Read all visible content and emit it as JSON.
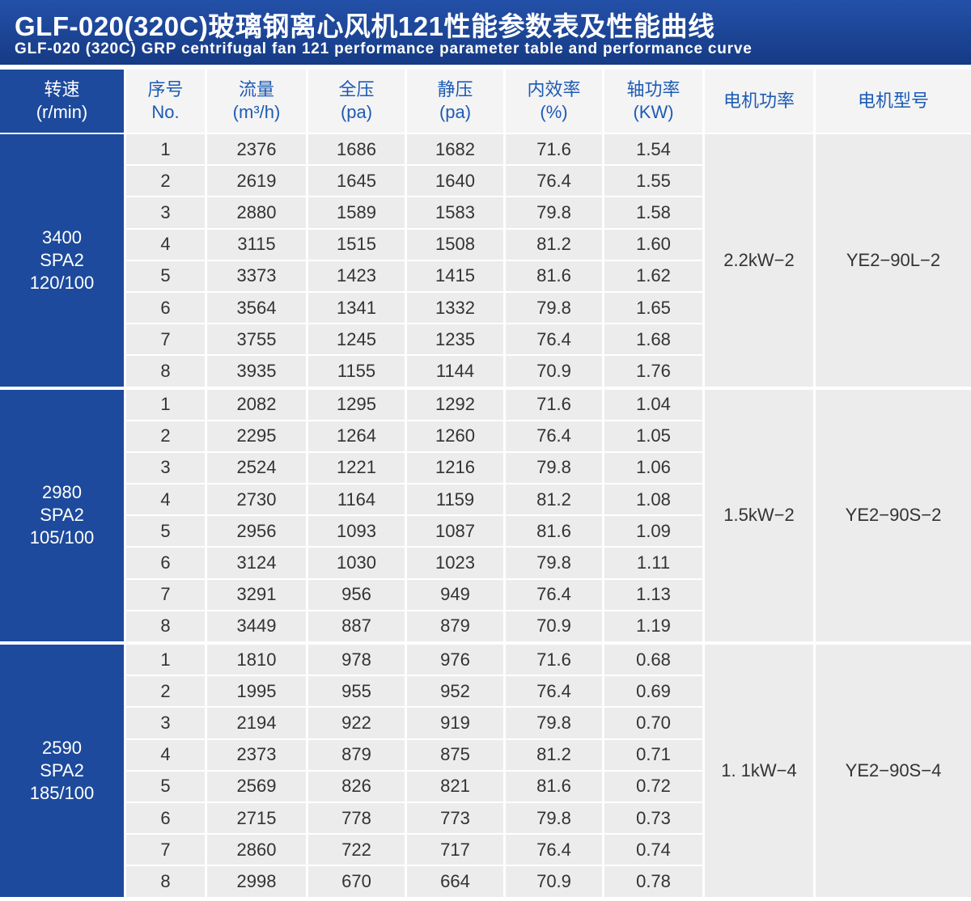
{
  "header": {
    "title_cn": "GLF-020(320C)玻璃钢离心风机121性能参数表及性能曲线",
    "title_en": "GLF-020 (320C) GRP centrifugal fan 121 performance parameter table and performance curve"
  },
  "table": {
    "columns": [
      [
        "转速",
        "(r/min)"
      ],
      [
        "序号",
        "No."
      ],
      [
        "流量",
        "(m³/h)"
      ],
      [
        "全压",
        "(pa)"
      ],
      [
        "静压",
        "(pa)"
      ],
      [
        "内效率",
        "(%)"
      ],
      [
        "轴功率",
        "(KW)"
      ],
      [
        "电机功率"
      ],
      [
        "电机型号"
      ]
    ],
    "groups": [
      {
        "speed": [
          "3400",
          "SPA2",
          "120/100"
        ],
        "power": "2.2kW−2",
        "motor": "YE2−90L−2",
        "rows": [
          [
            "1",
            "2376",
            "1686",
            "1682",
            "71.6",
            "1.54"
          ],
          [
            "2",
            "2619",
            "1645",
            "1640",
            "76.4",
            "1.55"
          ],
          [
            "3",
            "2880",
            "1589",
            "1583",
            "79.8",
            "1.58"
          ],
          [
            "4",
            "3115",
            "1515",
            "1508",
            "81.2",
            "1.60"
          ],
          [
            "5",
            "3373",
            "1423",
            "1415",
            "81.6",
            "1.62"
          ],
          [
            "6",
            "3564",
            "1341",
            "1332",
            "79.8",
            "1.65"
          ],
          [
            "7",
            "3755",
            "1245",
            "1235",
            "76.4",
            "1.68"
          ],
          [
            "8",
            "3935",
            "1155",
            "1144",
            "70.9",
            "1.76"
          ]
        ]
      },
      {
        "speed": [
          "2980",
          "SPA2",
          "105/100"
        ],
        "power": "1.5kW−2",
        "motor": "YE2−90S−2",
        "rows": [
          [
            "1",
            "2082",
            "1295",
            "1292",
            "71.6",
            "1.04"
          ],
          [
            "2",
            "2295",
            "1264",
            "1260",
            "76.4",
            "1.05"
          ],
          [
            "3",
            "2524",
            "1221",
            "1216",
            "79.8",
            "1.06"
          ],
          [
            "4",
            "2730",
            "1164",
            "1159",
            "81.2",
            "1.08"
          ],
          [
            "5",
            "2956",
            "1093",
            "1087",
            "81.6",
            "1.09"
          ],
          [
            "6",
            "3124",
            "1030",
            "1023",
            "79.8",
            "1.11"
          ],
          [
            "7",
            "3291",
            "956",
            "949",
            "76.4",
            "1.13"
          ],
          [
            "8",
            "3449",
            "887",
            "879",
            "70.9",
            "1.19"
          ]
        ]
      },
      {
        "speed": [
          "2590",
          "SPA2",
          "185/100"
        ],
        "power": "1. 1kW−4",
        "motor": "YE2−90S−4",
        "rows": [
          [
            "1",
            "1810",
            "978",
            "976",
            "71.6",
            "0.68"
          ],
          [
            "2",
            "1995",
            "955",
            "952",
            "76.4",
            "0.69"
          ],
          [
            "3",
            "2194",
            "922",
            "919",
            "79.8",
            "0.70"
          ],
          [
            "4",
            "2373",
            "879",
            "875",
            "81.2",
            "0.71"
          ],
          [
            "5",
            "2569",
            "826",
            "821",
            "81.6",
            "0.72"
          ],
          [
            "6",
            "2715",
            "778",
            "773",
            "79.8",
            "0.73"
          ],
          [
            "7",
            "2860",
            "722",
            "717",
            "76.4",
            "0.74"
          ],
          [
            "8",
            "2998",
            "670",
            "664",
            "70.9",
            "0.78"
          ]
        ]
      }
    ]
  }
}
